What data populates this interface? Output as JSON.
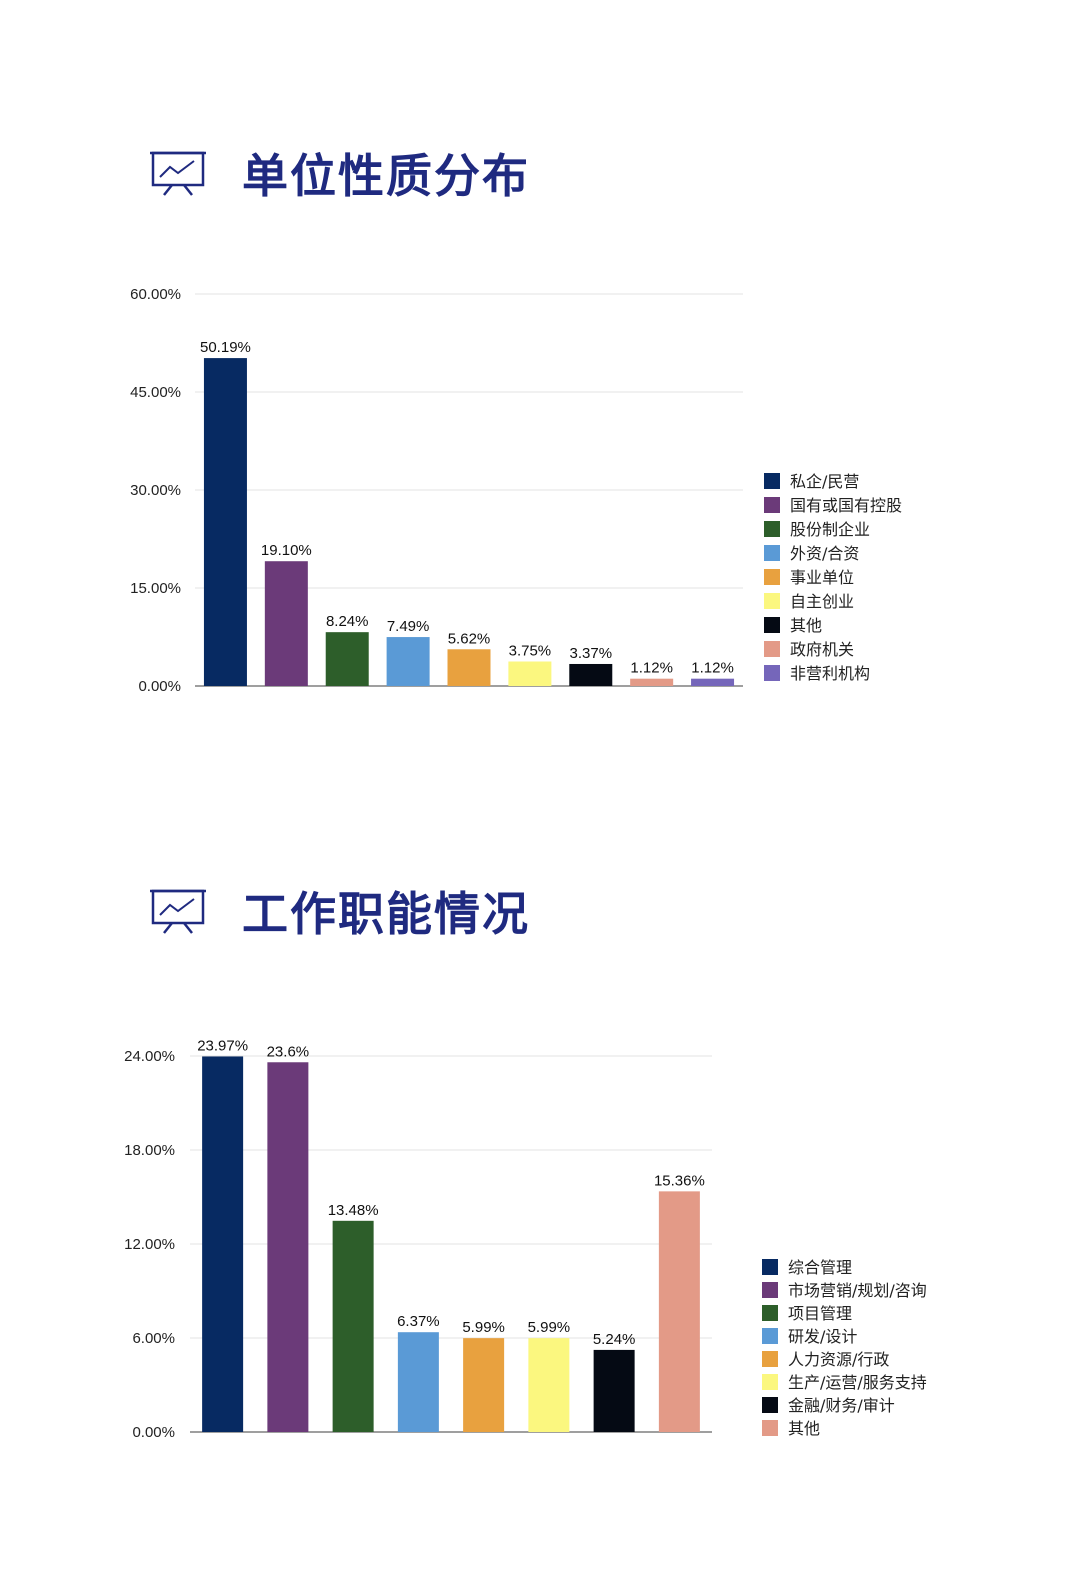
{
  "sections": [
    {
      "title": "单位性质分布",
      "icon": "presentation-chart-icon",
      "chart_data": {
        "type": "bar",
        "categories": [
          "私企/民营",
          "国有或国有控股",
          "股份制企业",
          "外资/合资",
          "事业单位",
          "自主创业",
          "其他",
          "政府机关",
          "非营利机构"
        ],
        "values": [
          50.19,
          19.1,
          8.24,
          7.49,
          5.62,
          3.75,
          3.37,
          1.12,
          1.12
        ],
        "value_labels": [
          "50.19%",
          "19.10%",
          "8.24%",
          "7.49%",
          "5.62%",
          "3.75%",
          "3.37%",
          "1.12%",
          "1.12%"
        ],
        "colors": [
          "#072a62",
          "#6b3a79",
          "#2d5e2a",
          "#5a9ad6",
          "#e8a13f",
          "#fbf77f",
          "#050a14",
          "#e39a87",
          "#7566ba"
        ],
        "yticks": [
          0,
          15,
          30,
          45,
          60
        ],
        "ytick_labels": [
          "0.00%",
          "15.00%",
          "30.00%",
          "45.00%",
          "60.00%"
        ],
        "ylim": [
          0,
          60
        ],
        "grid": true,
        "legend_position": "right",
        "xlabel": "",
        "ylabel": ""
      }
    },
    {
      "title": "工作职能情况",
      "icon": "presentation-chart-icon",
      "chart_data": {
        "type": "bar",
        "categories": [
          "综合管理",
          "市场营销/规划/咨询",
          "项目管理",
          "研发/设计",
          "人力资源/行政",
          "生产/运营/服务支持",
          "金融/财务/审计",
          "其他"
        ],
        "values": [
          23.97,
          23.6,
          13.48,
          6.37,
          5.99,
          5.99,
          5.24,
          15.36
        ],
        "value_labels": [
          "23.97%",
          "23.6%",
          "13.48%",
          "6.37%",
          "5.99%",
          "5.99%",
          "5.24%",
          "15.36%"
        ],
        "colors": [
          "#072a62",
          "#6b3a79",
          "#2d5e2a",
          "#5a9ad6",
          "#e8a13f",
          "#fbf77f",
          "#050a14",
          "#e39a87"
        ],
        "yticks": [
          0,
          6,
          12,
          18,
          24
        ],
        "ytick_labels": [
          "0.00%",
          "6.00%",
          "12.00%",
          "18.00%",
          "24.00%"
        ],
        "ylim": [
          0,
          24
        ],
        "grid": true,
        "legend_position": "right",
        "xlabel": "",
        "ylabel": ""
      }
    }
  ]
}
